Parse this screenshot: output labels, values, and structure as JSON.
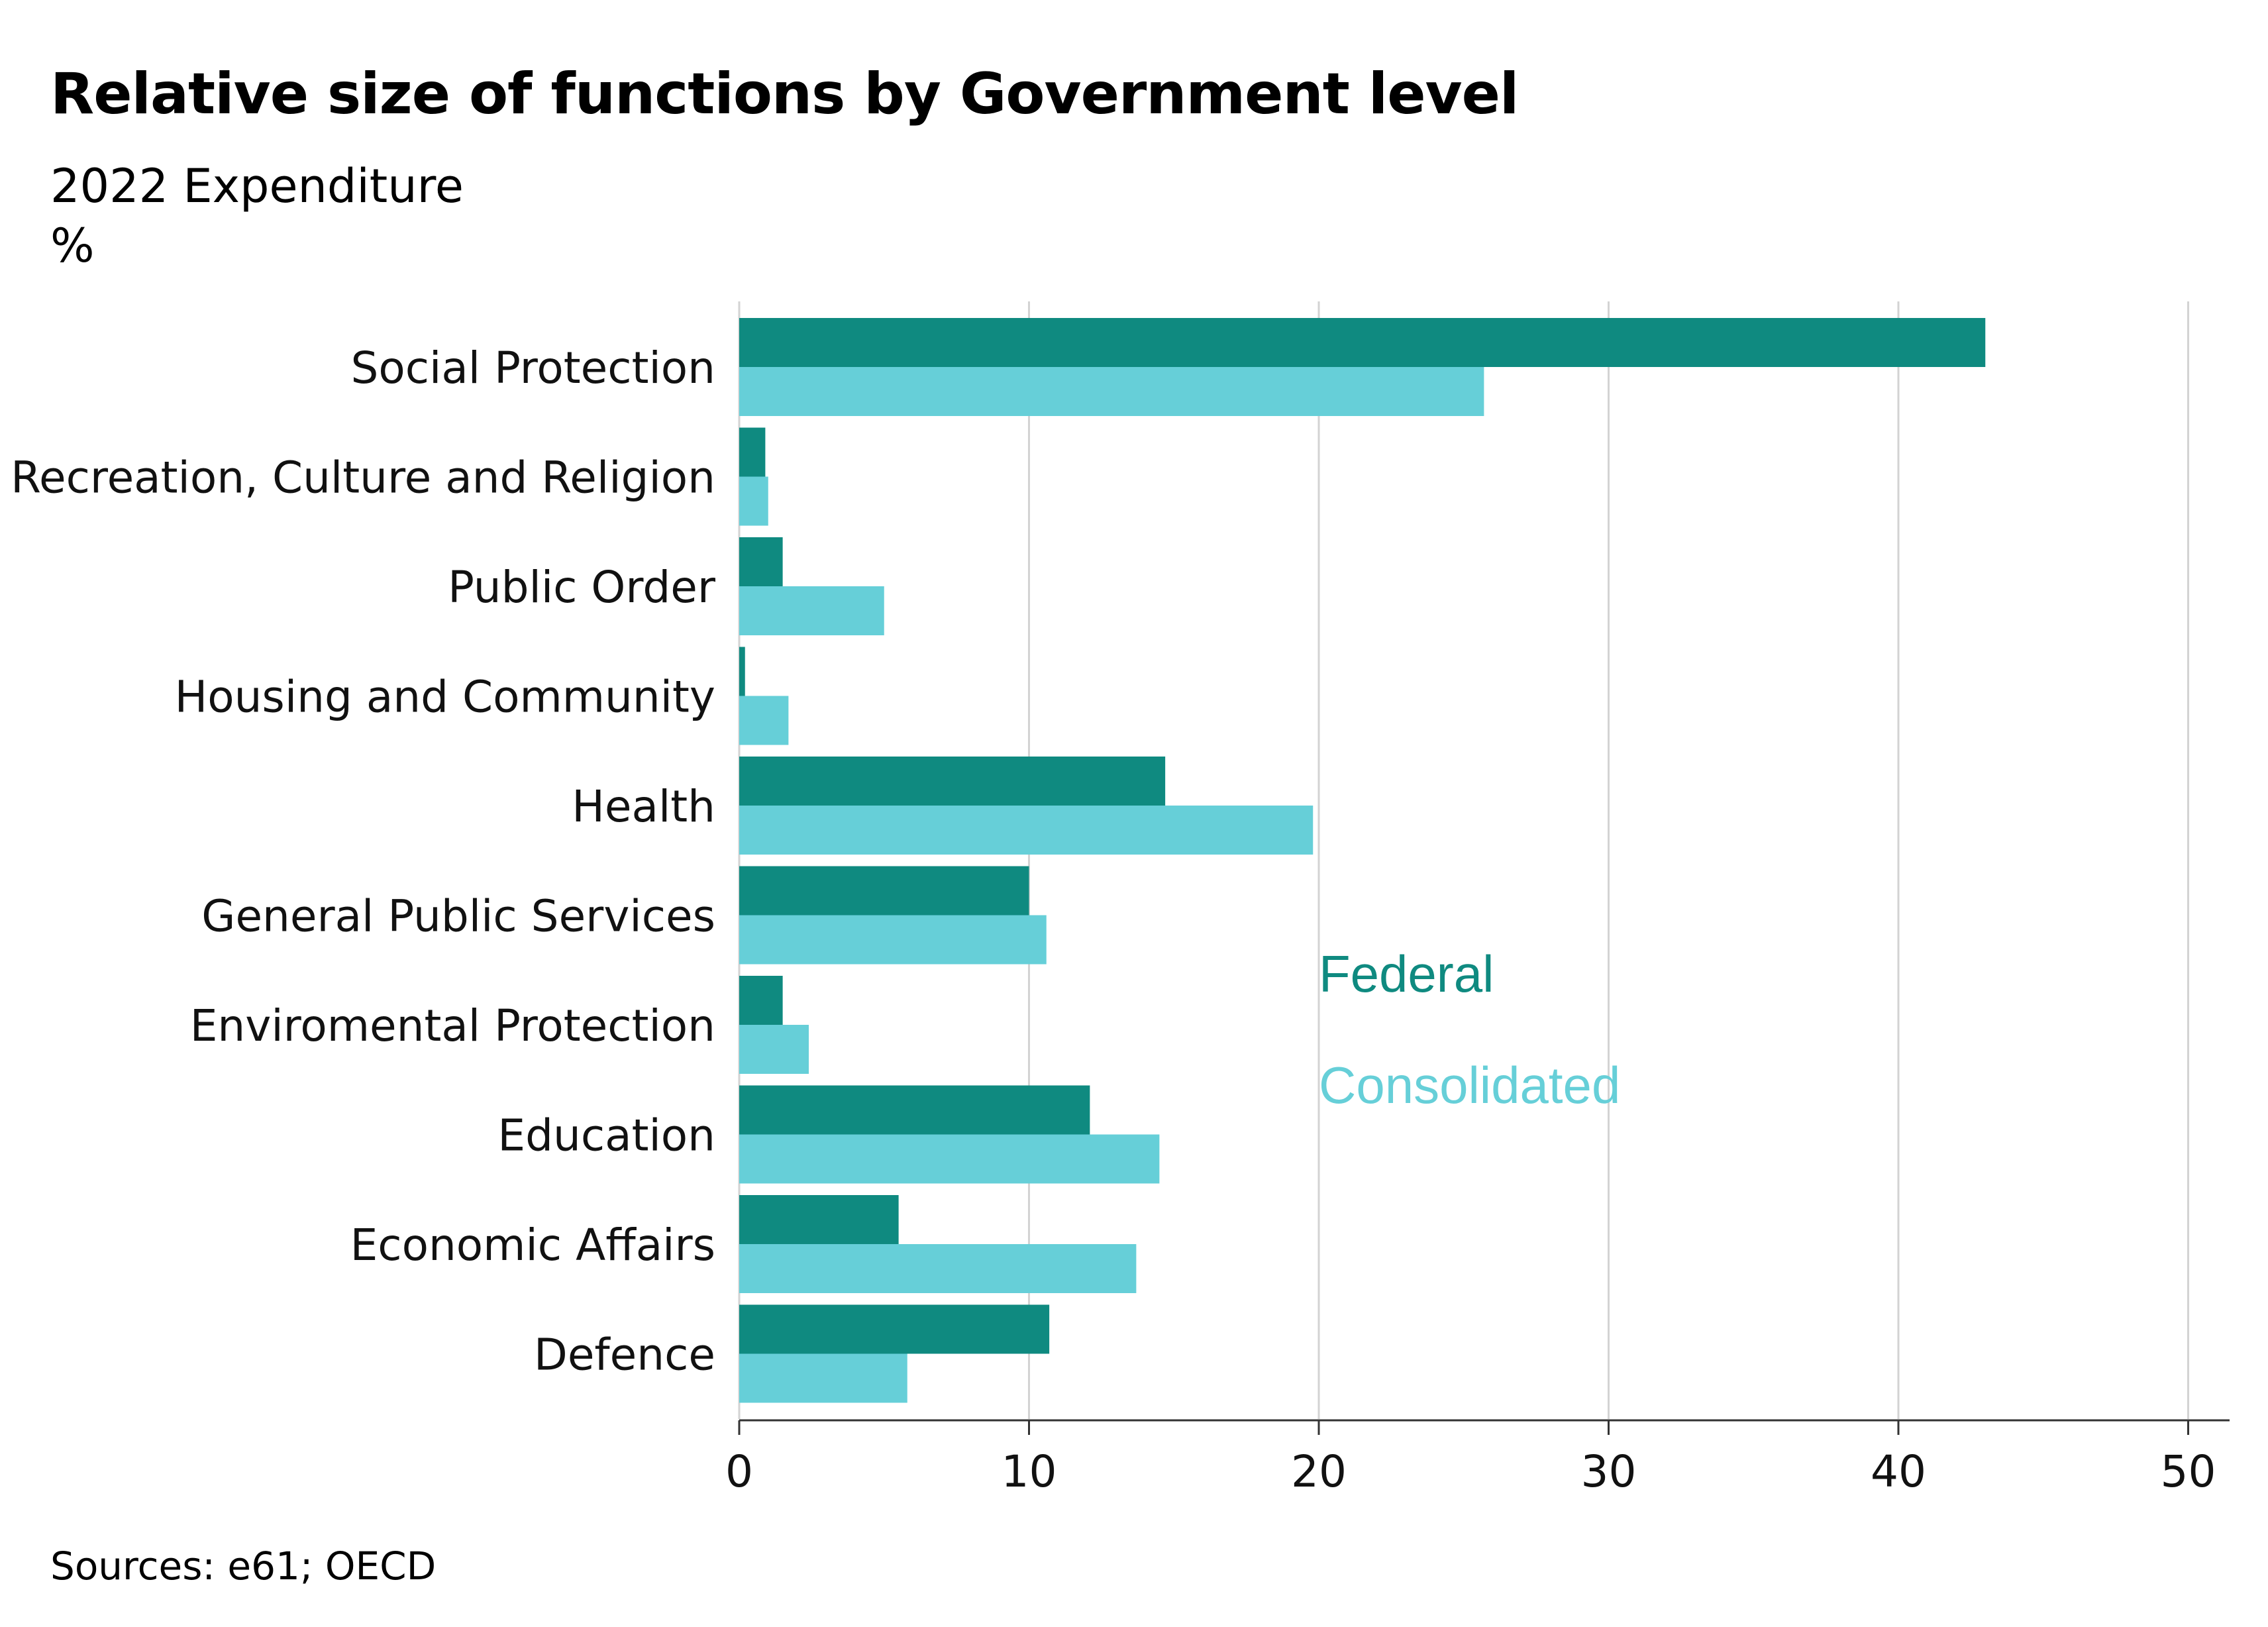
{
  "title": "Relative size of functions by Government level",
  "subtitle": "2022 Expenditure",
  "unit": "%",
  "source": "Sources: e61; OECD",
  "colors": {
    "federal": "#0F8A80",
    "consolidated": "#66CFD8",
    "grid": "#D3D3D3",
    "axis": "#333333"
  },
  "chart_data": {
    "type": "bar",
    "orientation": "horizontal",
    "categories": [
      "Social Protection",
      "Recreation, Culture and Religion",
      "Public Order",
      "Housing and Community",
      "Health",
      "General Public Services",
      "Enviromental Protection",
      "Education",
      "Economic Affairs",
      "Defence"
    ],
    "series": [
      {
        "name": "Federal",
        "values": [
          43.0,
          0.9,
          1.5,
          0.2,
          14.7,
          10.0,
          1.5,
          12.1,
          5.5,
          10.7
        ]
      },
      {
        "name": "Consolidated",
        "values": [
          25.7,
          1.0,
          5.0,
          1.7,
          19.8,
          10.6,
          2.4,
          14.5,
          13.7,
          5.8
        ]
      }
    ],
    "xlim": [
      0,
      51
    ],
    "xticks": [
      "0",
      "10",
      "20",
      "30",
      "40",
      "50"
    ],
    "grid": true,
    "legend": "inside-right"
  }
}
